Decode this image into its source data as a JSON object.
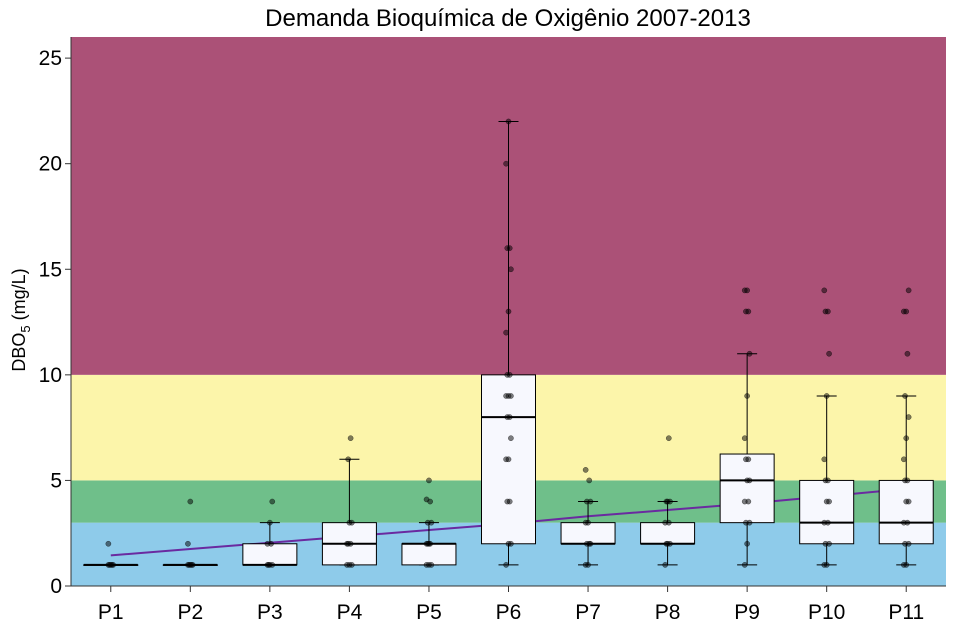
{
  "chart_data": {
    "type": "box",
    "title": "Demanda Bioquímica de Oxigênio 2007-2013",
    "ylabel": {
      "main": "DBO",
      "sub": "5",
      "unit": " (mg/L)"
    },
    "xlabel": "",
    "ylim": [
      0,
      26
    ],
    "yticks": [
      "0",
      "5",
      "10",
      "15",
      "20",
      "25"
    ],
    "bands": [
      {
        "from": 0,
        "to": 3,
        "color": "#8ecbea"
      },
      {
        "from": 3,
        "to": 5,
        "color": "#6fbf8a"
      },
      {
        "from": 5,
        "to": 10,
        "color": "#fcf5aa"
      },
      {
        "from": 10,
        "to": 26,
        "color": "#ab5177"
      }
    ],
    "box_fill": "#f7f8fe",
    "trend_color": "#6a2aa0",
    "categories": [
      "P1",
      "P2",
      "P3",
      "P4",
      "P5",
      "P6",
      "P7",
      "P8",
      "P9",
      "P10",
      "P11"
    ],
    "boxes": [
      {
        "min": 1,
        "q1": 1,
        "median": 1,
        "q3": 1,
        "max": 1,
        "points": [
          1,
          1,
          1,
          1,
          1,
          2
        ]
      },
      {
        "min": 1,
        "q1": 1,
        "median": 1,
        "q3": 1,
        "max": 1,
        "points": [
          1,
          1,
          1,
          1,
          1,
          2,
          4
        ]
      },
      {
        "min": 1,
        "q1": 1,
        "median": 1,
        "q3": 2,
        "max": 3,
        "points": [
          1,
          1,
          1,
          1,
          2,
          2,
          3,
          4
        ]
      },
      {
        "min": 1,
        "q1": 1,
        "median": 2,
        "q3": 3,
        "max": 6,
        "points": [
          1,
          1,
          1,
          2,
          2,
          2,
          3,
          3,
          6,
          7
        ]
      },
      {
        "min": 1,
        "q1": 1,
        "median": 2,
        "q3": 2,
        "max": 3,
        "points": [
          1,
          1,
          1,
          2,
          2,
          2,
          2,
          3,
          3,
          4,
          4.1,
          5
        ]
      },
      {
        "min": 1,
        "q1": 2,
        "median": 8,
        "q3": 10,
        "max": 22,
        "points": [
          1,
          2,
          2,
          4,
          4,
          6,
          6,
          7,
          8,
          8,
          9,
          9,
          9,
          10,
          10,
          12,
          13,
          15,
          16,
          16,
          20,
          22
        ]
      },
      {
        "min": 1,
        "q1": 2,
        "median": 2,
        "q3": 3,
        "max": 4,
        "points": [
          1,
          1,
          2,
          2,
          2,
          3,
          3,
          4,
          4,
          5,
          5.5
        ]
      },
      {
        "min": 1,
        "q1": 2,
        "median": 2,
        "q3": 3,
        "max": 4,
        "points": [
          1,
          2,
          2,
          2,
          3,
          3,
          4,
          4,
          4,
          7
        ]
      },
      {
        "min": 1,
        "q1": 3,
        "median": 5,
        "q3": 6.25,
        "max": 11,
        "points": [
          1,
          2,
          3,
          3,
          4,
          4,
          5,
          5,
          6,
          6,
          7,
          9,
          11,
          13,
          13,
          14,
          14
        ]
      },
      {
        "min": 1,
        "q1": 2,
        "median": 3,
        "q3": 5,
        "max": 9,
        "points": [
          1,
          1,
          2,
          2,
          3,
          3,
          4,
          4,
          5,
          5,
          6,
          9,
          11,
          13,
          13,
          14
        ]
      },
      {
        "min": 1,
        "q1": 2,
        "median": 3,
        "q3": 5,
        "max": 9,
        "points": [
          1,
          1,
          2,
          2,
          3,
          3,
          4,
          4,
          5,
          5,
          6,
          7,
          8,
          9,
          11,
          13,
          13,
          14
        ]
      }
    ],
    "trend": [
      1.45,
      1.75,
      2.05,
      2.35,
      2.65,
      2.95,
      3.3,
      3.6,
      3.9,
      4.25,
      4.6
    ]
  }
}
